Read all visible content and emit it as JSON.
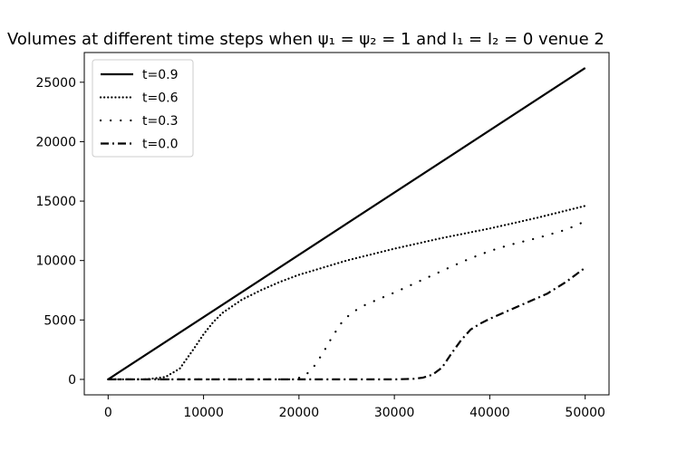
{
  "chart_data": {
    "type": "line",
    "title": "Volumes at different time steps when ψ₁ = ψ₂ = 1 and I₁ = I₂ = 0 venue 2",
    "xlabel": "",
    "ylabel": "",
    "xlim": [
      -2500,
      52500
    ],
    "ylim": [
      -1300,
      27500
    ],
    "xticks": [
      0,
      10000,
      20000,
      30000,
      40000,
      50000
    ],
    "yticks": [
      0,
      5000,
      10000,
      15000,
      20000,
      25000
    ],
    "grid": false,
    "legend_position": "top-left",
    "series": [
      {
        "name": "t=0.9",
        "style": "solid",
        "x": [
          0,
          50000
        ],
        "y": [
          0,
          26200
        ]
      },
      {
        "name": "t=0.6",
        "style": "dotted",
        "x": [
          0,
          4000,
          6000,
          7500,
          9000,
          10000,
          11000,
          12000,
          14000,
          16000,
          18000,
          20000,
          25000,
          30000,
          35000,
          40000,
          45000,
          50000
        ],
        "y": [
          0,
          0,
          200,
          900,
          2600,
          3800,
          4800,
          5600,
          6700,
          7500,
          8200,
          8800,
          10000,
          11000,
          11900,
          12700,
          13600,
          14600
        ]
      },
      {
        "name": "t=0.3",
        "style": "dotted-sparse",
        "x": [
          0,
          19000,
          20500,
          21500,
          22500,
          23500,
          24500,
          25500,
          27000,
          30000,
          33000,
          36000,
          38000,
          40000,
          42000,
          45000,
          48000,
          50000
        ],
        "y": [
          0,
          0,
          200,
          1000,
          2200,
          3600,
          4800,
          5600,
          6300,
          7300,
          8400,
          9500,
          10200,
          10800,
          11300,
          11900,
          12600,
          13300
        ]
      },
      {
        "name": "t=0.0",
        "style": "dashdot",
        "x": [
          0,
          30000,
          32000,
          33000,
          34000,
          35000,
          36000,
          37000,
          38000,
          39000,
          40000,
          42000,
          44000,
          46000,
          48000,
          50000
        ],
        "y": [
          0,
          0,
          50,
          150,
          400,
          1000,
          2200,
          3300,
          4200,
          4700,
          5100,
          5800,
          6500,
          7200,
          8200,
          9400
        ]
      }
    ],
    "colors": {
      "line": "#000000",
      "legend_border": "#cccccc"
    }
  }
}
